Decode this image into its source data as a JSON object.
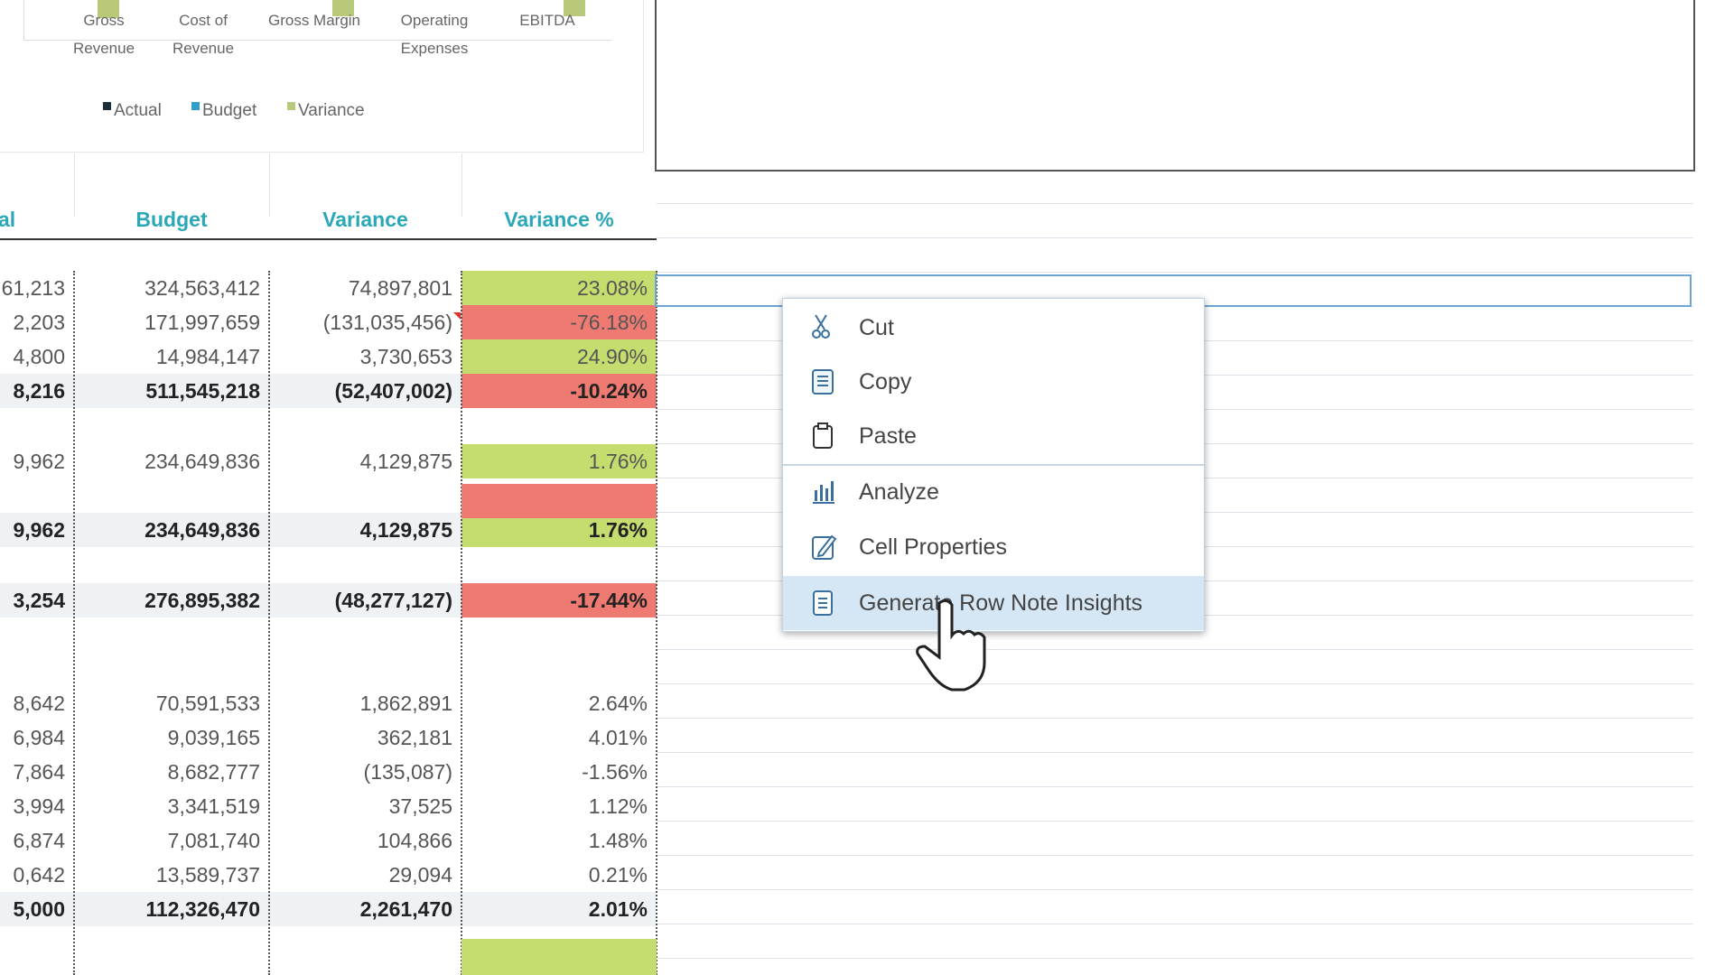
{
  "chart": {
    "categories": [
      [
        "Gross",
        "Revenue"
      ],
      [
        "Cost of",
        "Revenue"
      ],
      [
        "Gross Margin"
      ],
      [
        "Operating",
        "Expenses"
      ],
      [
        "EBITDA"
      ]
    ],
    "legend": [
      "Actual",
      "Budget",
      "Variance"
    ]
  },
  "table": {
    "header": [
      "al",
      "Budget",
      "Variance",
      "Variance %"
    ],
    "rows": [
      [
        "61,213",
        "324,563,412",
        "74,897,801",
        "23.08%"
      ],
      [
        "2,203",
        "171,997,659",
        "(131,035,456)",
        "-76.18%"
      ],
      [
        "4,800",
        "14,984,147",
        "3,730,653",
        "24.90%"
      ],
      [
        "8,216",
        "511,545,218",
        "(52,407,002)",
        "-10.24%"
      ],
      [
        "9,962",
        "234,649,836",
        "4,129,875",
        "1.76%"
      ],
      [
        "9,962",
        "234,649,836",
        "4,129,875",
        "1.76%"
      ],
      [
        "3,254",
        "276,895,382",
        "(48,277,127)",
        "-17.44%"
      ],
      [
        "8,642",
        "70,591,533",
        "1,862,891",
        "2.64%"
      ],
      [
        "6,984",
        "9,039,165",
        "362,181",
        "4.01%"
      ],
      [
        "7,864",
        "8,682,777",
        "(135,087)",
        "-1.56%"
      ],
      [
        "3,994",
        "3,341,519",
        "37,525",
        "1.12%"
      ],
      [
        "6,874",
        "7,081,740",
        "104,866",
        "1.48%"
      ],
      [
        "0,642",
        "13,589,737",
        "29,094",
        "0.21%"
      ],
      [
        "5,000",
        "112,326,470",
        "2,261,470",
        "2.01%"
      ]
    ]
  },
  "menu": {
    "items": [
      "Cut",
      "Copy",
      "Paste",
      "Analyze",
      "Cell Properties",
      "Generate Row Note Insights"
    ]
  }
}
